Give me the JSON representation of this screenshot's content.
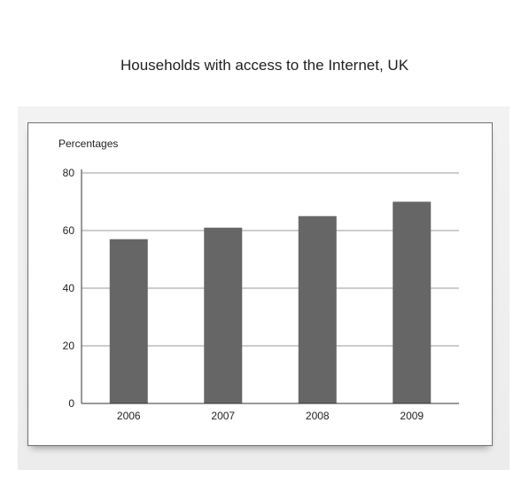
{
  "chart_data": {
    "type": "bar",
    "title": "Households with access to the Internet, UK",
    "ylabel": "Percentages",
    "xlabel": "",
    "categories": [
      "2006",
      "2007",
      "2008",
      "2009"
    ],
    "values": [
      57,
      61,
      65,
      70
    ],
    "ylim": [
      0,
      80
    ],
    "yticks": [
      0,
      20,
      40,
      60,
      80
    ],
    "grid": true,
    "legend": "none",
    "bar_color": "#666666",
    "grid_color": "#7a7a7a"
  }
}
